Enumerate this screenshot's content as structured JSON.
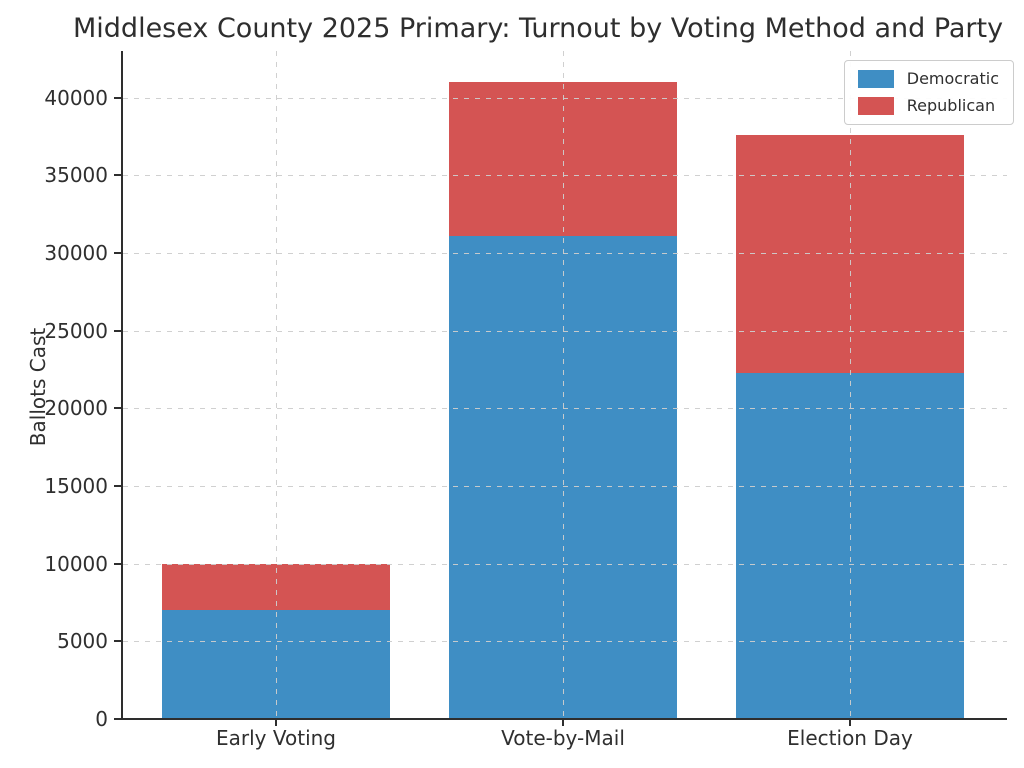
{
  "chart_data": {
    "type": "bar",
    "stacked": true,
    "title": "Middlesex County 2025 Primary: Turnout by Voting Method and Party",
    "ylabel": "Ballots Cast",
    "xlabel": "",
    "categories": [
      "Early Voting",
      "Vote-by-Mail",
      "Election Day"
    ],
    "series": [
      {
        "name": "Democratic",
        "color": "#3f8ec4",
        "values": [
          7000,
          31100,
          22300
        ]
      },
      {
        "name": "Republican",
        "color": "#d45453",
        "values": [
          3000,
          9900,
          15300
        ]
      }
    ],
    "ylim": [
      0,
      43000
    ],
    "yticks": [
      0,
      5000,
      10000,
      15000,
      20000,
      25000,
      30000,
      35000,
      40000
    ],
    "grid": {
      "visible": true,
      "line_style": "dashed",
      "color": "#cdcdcd"
    },
    "legend": {
      "position": "upper right"
    },
    "axis_color": "#2e2e2e",
    "text_color": "#2f2f2f",
    "background_color": "#ffffff"
  }
}
